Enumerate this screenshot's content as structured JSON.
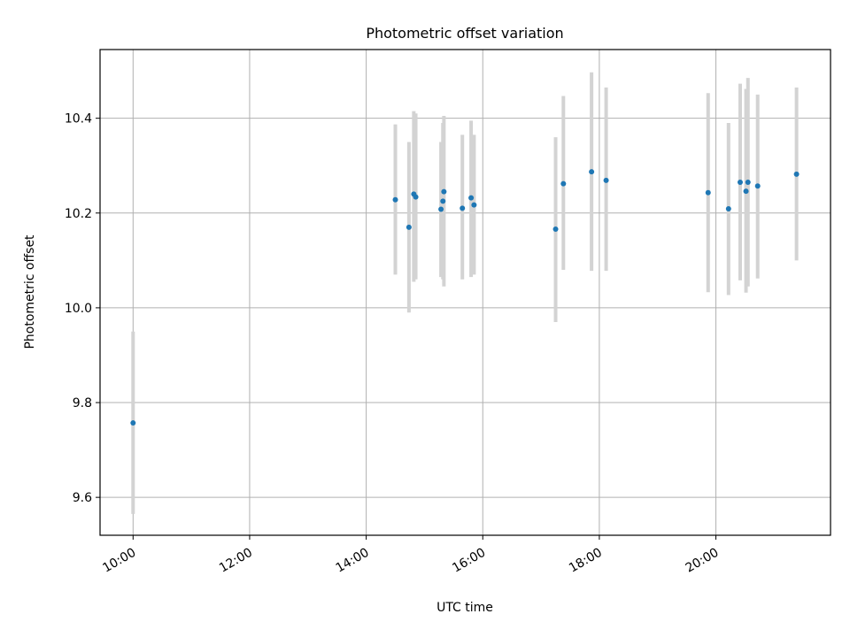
{
  "chart_data": {
    "type": "scatter",
    "title": "Photometric offset variation",
    "xlabel": "UTC time",
    "ylabel": "Photometric offset",
    "x_format": "HH:MM",
    "xlim": [
      "09:26",
      "21:58"
    ],
    "ylim": [
      9.52,
      10.545
    ],
    "x_ticks": [
      "10:00",
      "12:00",
      "14:00",
      "16:00",
      "18:00",
      "20:00"
    ],
    "y_ticks": [
      9.6,
      9.8,
      10.0,
      10.2,
      10.4
    ],
    "y_tick_labels": [
      "9.6",
      "9.8",
      "10.0",
      "10.2",
      "10.4"
    ],
    "grid": true,
    "marker_color": "#1f77b4",
    "errorbar_color": "#d3d3d3",
    "points": [
      {
        "x": "10:00",
        "y": 9.757,
        "lo": 9.565,
        "hi": 9.95
      },
      {
        "x": "14:30",
        "y": 10.228,
        "lo": 10.07,
        "hi": 10.387
      },
      {
        "x": "14:44",
        "y": 10.17,
        "lo": 9.99,
        "hi": 10.35
      },
      {
        "x": "14:49",
        "y": 10.24,
        "lo": 10.055,
        "hi": 10.415
      },
      {
        "x": "14:51",
        "y": 10.234,
        "lo": 10.06,
        "hi": 10.41
      },
      {
        "x": "15:17",
        "y": 10.208,
        "lo": 10.065,
        "hi": 10.35
      },
      {
        "x": "15:19",
        "y": 10.225,
        "lo": 10.06,
        "hi": 10.39
      },
      {
        "x": "15:20",
        "y": 10.245,
        "lo": 10.045,
        "hi": 10.405
      },
      {
        "x": "15:39",
        "y": 10.21,
        "lo": 10.06,
        "hi": 10.365
      },
      {
        "x": "15:48",
        "y": 10.232,
        "lo": 10.065,
        "hi": 10.395
      },
      {
        "x": "15:51",
        "y": 10.217,
        "lo": 10.07,
        "hi": 10.365
      },
      {
        "x": "17:15",
        "y": 10.166,
        "lo": 9.97,
        "hi": 10.36
      },
      {
        "x": "17:23",
        "y": 10.262,
        "lo": 10.08,
        "hi": 10.447
      },
      {
        "x": "17:52",
        "y": 10.287,
        "lo": 10.078,
        "hi": 10.497
      },
      {
        "x": "18:07",
        "y": 10.269,
        "lo": 10.078,
        "hi": 10.465
      },
      {
        "x": "19:52",
        "y": 10.243,
        "lo": 10.033,
        "hi": 10.453
      },
      {
        "x": "20:13",
        "y": 10.209,
        "lo": 10.027,
        "hi": 10.39
      },
      {
        "x": "20:25",
        "y": 10.265,
        "lo": 10.058,
        "hi": 10.473
      },
      {
        "x": "20:31",
        "y": 10.246,
        "lo": 10.032,
        "hi": 10.462
      },
      {
        "x": "20:33",
        "y": 10.265,
        "lo": 10.045,
        "hi": 10.485
      },
      {
        "x": "20:43",
        "y": 10.257,
        "lo": 10.062,
        "hi": 10.45
      },
      {
        "x": "21:23",
        "y": 10.282,
        "lo": 10.1,
        "hi": 10.465
      }
    ]
  }
}
